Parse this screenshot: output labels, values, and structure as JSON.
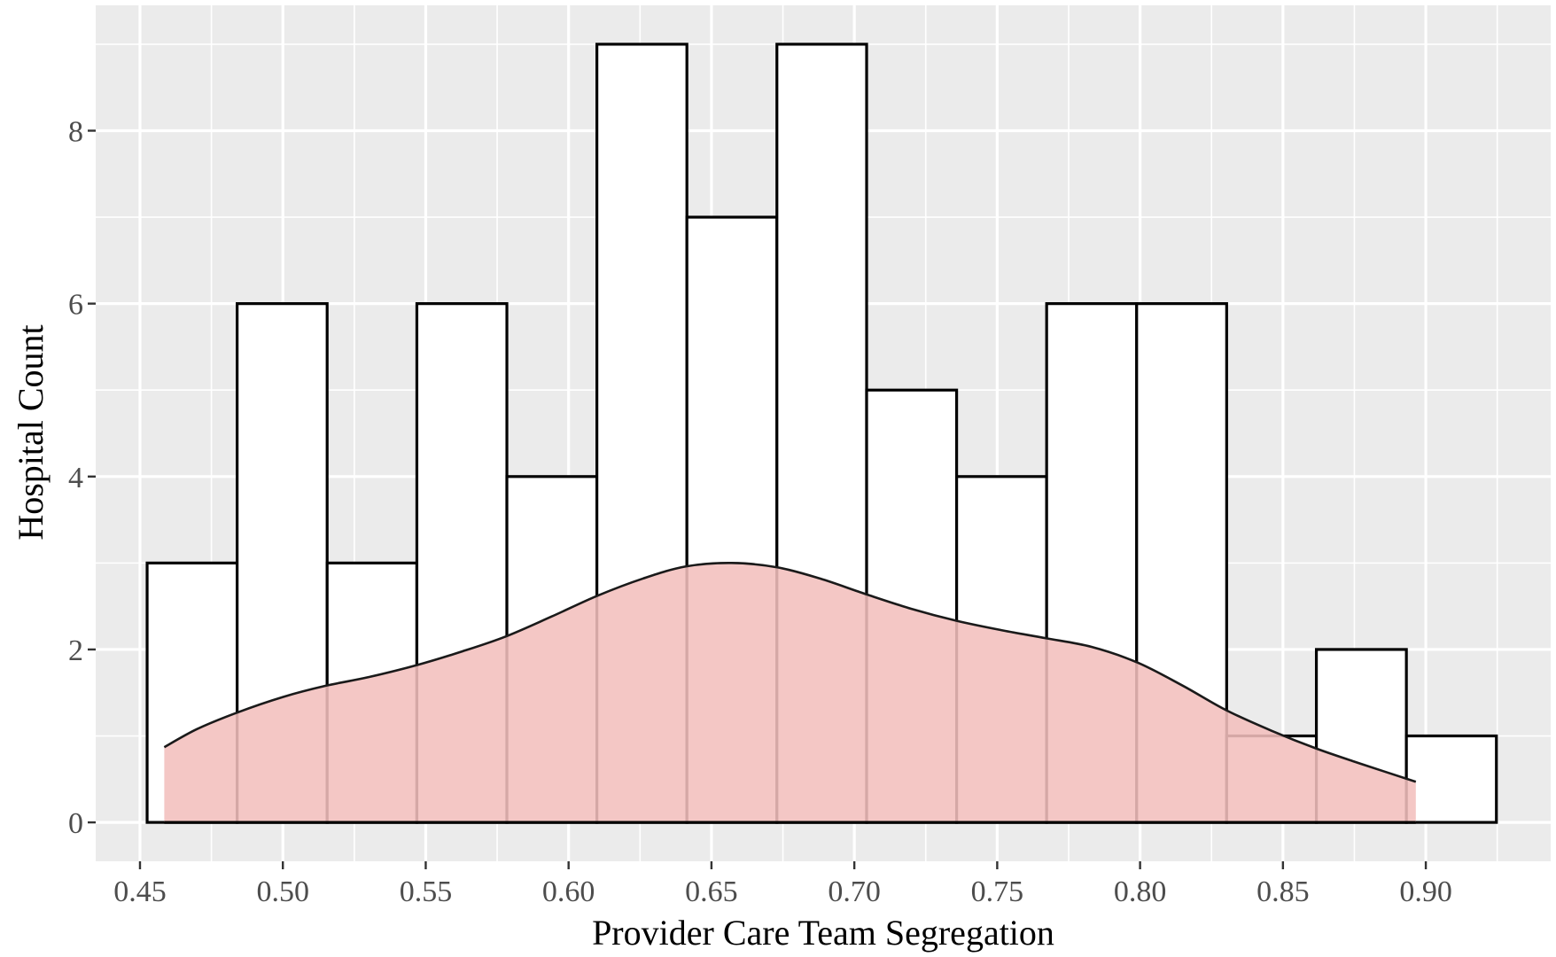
{
  "chart_data": {
    "type": "bar",
    "subtype": "histogram-with-density",
    "xlabel": "Provider Care Team Segregation",
    "ylabel": "Hospital Count",
    "xlim": [
      0.4345,
      0.9437
    ],
    "ylim": [
      -0.45,
      9.45
    ],
    "x_ticks": [
      0.45,
      0.5,
      0.55,
      0.6,
      0.65,
      0.7,
      0.75,
      0.8,
      0.85,
      0.9
    ],
    "x_tick_labels": [
      "0.45",
      "0.50",
      "0.55",
      "0.60",
      "0.65",
      "0.70",
      "0.75",
      "0.80",
      "0.85",
      "0.90"
    ],
    "y_ticks": [
      0,
      2,
      4,
      6,
      8
    ],
    "y_tick_labels": [
      "0",
      "2",
      "4",
      "6",
      "8"
    ],
    "grid": true,
    "legend": "none",
    "bins": [
      {
        "x0": 0.4525,
        "x1": 0.484,
        "count": 3
      },
      {
        "x0": 0.484,
        "x1": 0.5155,
        "count": 6
      },
      {
        "x0": 0.5155,
        "x1": 0.5469,
        "count": 3
      },
      {
        "x0": 0.5469,
        "x1": 0.5784,
        "count": 6
      },
      {
        "x0": 0.5784,
        "x1": 0.6099,
        "count": 4
      },
      {
        "x0": 0.6099,
        "x1": 0.6414,
        "count": 9
      },
      {
        "x0": 0.6414,
        "x1": 0.6729,
        "count": 7
      },
      {
        "x0": 0.6729,
        "x1": 0.7043,
        "count": 9
      },
      {
        "x0": 0.7043,
        "x1": 0.7358,
        "count": 5
      },
      {
        "x0": 0.7358,
        "x1": 0.7673,
        "count": 4
      },
      {
        "x0": 0.7673,
        "x1": 0.7988,
        "count": 6
      },
      {
        "x0": 0.7988,
        "x1": 0.8303,
        "count": 6
      },
      {
        "x0": 0.8303,
        "x1": 0.8617,
        "count": 1
      },
      {
        "x0": 0.8617,
        "x1": 0.8932,
        "count": 2
      },
      {
        "x0": 0.8932,
        "x1": 0.9247,
        "count": 1
      }
    ],
    "density": {
      "x": [
        0.4585,
        0.47,
        0.484,
        0.5,
        0.515,
        0.53,
        0.547,
        0.563,
        0.578,
        0.594,
        0.61,
        0.626,
        0.641,
        0.657,
        0.673,
        0.688,
        0.704,
        0.72,
        0.736,
        0.752,
        0.767,
        0.783,
        0.799,
        0.815,
        0.83,
        0.846,
        0.862,
        0.878,
        0.8965
      ],
      "y": [
        0.87,
        1.08,
        1.27,
        1.45,
        1.58,
        1.68,
        1.82,
        1.98,
        2.15,
        2.38,
        2.62,
        2.82,
        2.96,
        3.0,
        2.95,
        2.82,
        2.64,
        2.47,
        2.33,
        2.22,
        2.13,
        2.03,
        1.85,
        1.58,
        1.3,
        1.06,
        0.85,
        0.67,
        0.47
      ]
    },
    "colors": {
      "panel_background": "#ebebeb",
      "grid": "#ffffff",
      "bar_fill": "#ffffff",
      "bar_outline": "#000000",
      "density_fill": "#f2bfbd",
      "density_line": "#1a1a1a"
    }
  }
}
